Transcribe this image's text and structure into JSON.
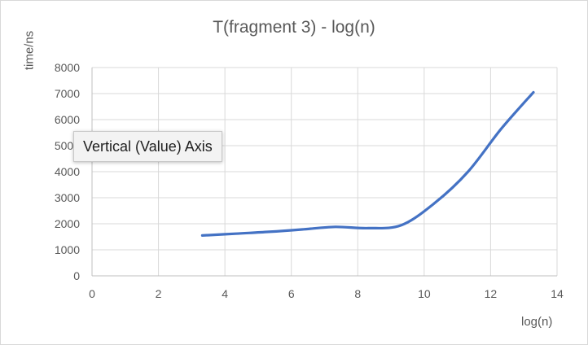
{
  "chart_data": {
    "type": "line",
    "title": "T(fragment 3) - log(n)",
    "xlabel": "log(n)",
    "ylabel": "time/ns",
    "xlim": [
      0,
      14
    ],
    "ylim": [
      0,
      8000
    ],
    "x_ticks": [
      0,
      2,
      4,
      6,
      8,
      10,
      12,
      14
    ],
    "y_ticks": [
      0,
      1000,
      2000,
      3000,
      4000,
      5000,
      6000,
      7000,
      8000
    ],
    "grid": true,
    "smoothed": true,
    "series": [
      {
        "color": "#4472c4",
        "x": [
          3.32,
          4.32,
          5.32,
          6.32,
          7.32,
          8.32,
          9.32,
          10.32,
          11.32,
          12.32,
          13.29
        ],
        "y": [
          1550,
          1620,
          1690,
          1780,
          1880,
          1830,
          1950,
          2800,
          4000,
          5650,
          7050
        ]
      }
    ]
  },
  "tooltip": {
    "text": "Vertical (Value) Axis"
  }
}
